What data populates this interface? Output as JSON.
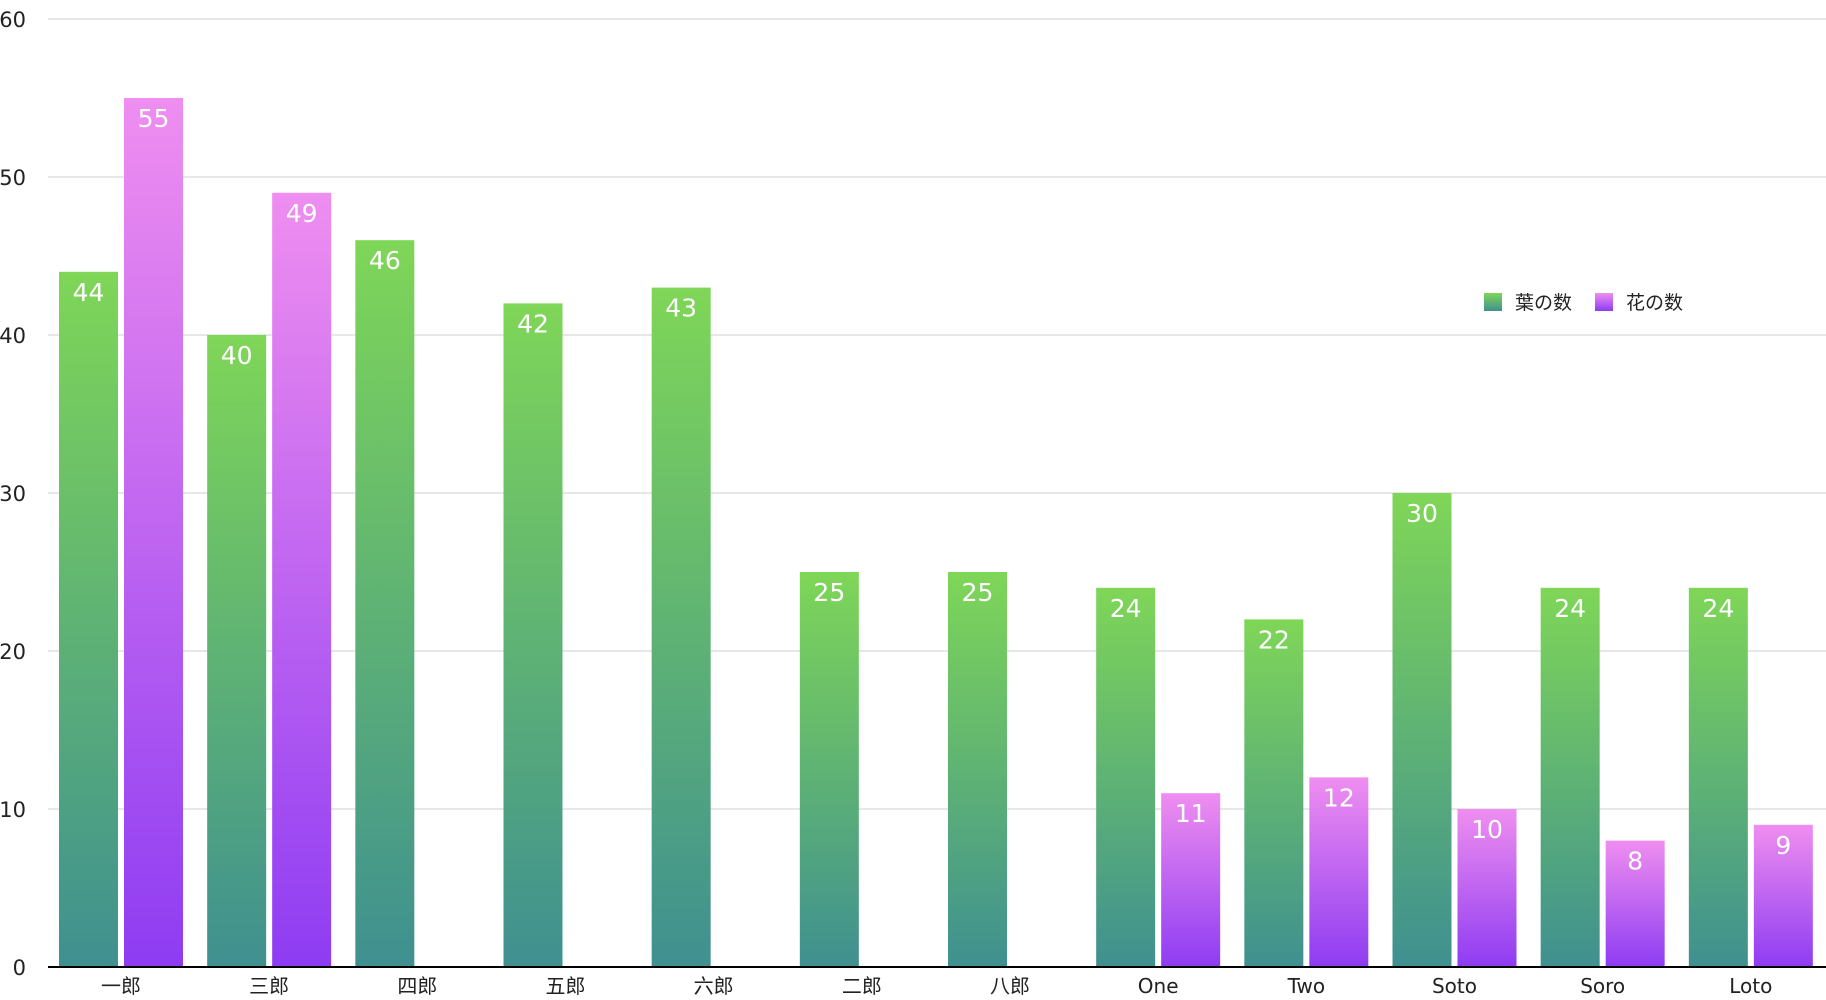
{
  "chart_data": {
    "type": "bar",
    "title": "",
    "xlabel": "",
    "ylabel": "",
    "ylim": [
      0,
      60
    ],
    "yticks": [
      0,
      10,
      20,
      30,
      40,
      50,
      60
    ],
    "grid": true,
    "legend_position": "right",
    "categories": [
      "一郎",
      "三郎",
      "四郎",
      "五郎",
      "六郎",
      "二郎",
      "八郎",
      "One",
      "Two",
      "Soto",
      "Soro",
      "Loto"
    ],
    "series": [
      {
        "name": "葉の数",
        "values": [
          44,
          40,
          46,
          42,
          43,
          25,
          25,
          24,
          22,
          30,
          24,
          24
        ],
        "color_top": "#7fd657",
        "color_bottom": "#3f9090"
      },
      {
        "name": "花の数",
        "values": [
          55,
          49,
          null,
          null,
          null,
          null,
          null,
          11,
          12,
          10,
          8,
          9
        ],
        "color_top": "#ef8ef0",
        "color_bottom": "#8e3cf2"
      }
    ]
  }
}
